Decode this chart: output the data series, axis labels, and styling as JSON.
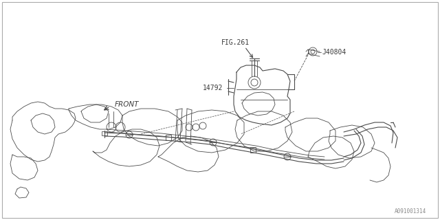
{
  "background_color": "#ffffff",
  "line_color": "#4a4a4a",
  "text_color": "#3a3a3a",
  "fig_ref": "FIG.261",
  "part_j40804": "J40804",
  "part_14792": "14792",
  "front_label": "FRONT",
  "watermark": "A091001314",
  "figsize": [
    6.4,
    3.2
  ],
  "dpi": 100,
  "border_color": "#aaaaaa"
}
